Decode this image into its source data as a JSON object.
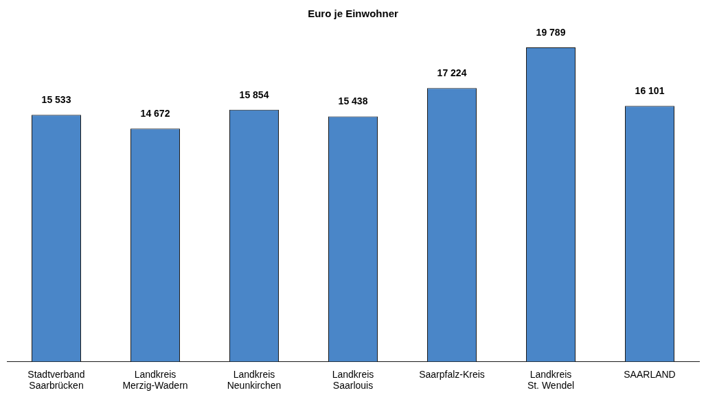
{
  "chart_data": {
    "type": "bar",
    "title": "Euro je Einwohner",
    "categories": [
      "Stadtverband\nSaarbrücken",
      "Landkreis\nMerzig-Wadern",
      "Landkreis\nNeunkirchen",
      "Landkreis\nSaarlouis",
      "Saarpfalz-Kreis",
      "Landkreis\nSt. Wendel",
      "SAARLAND"
    ],
    "values": [
      15533,
      14672,
      15854,
      15438,
      17224,
      19789,
      16101
    ],
    "value_labels": [
      "15 533",
      "14 672",
      "15 854",
      "15 438",
      "17 224",
      "19 789",
      "16 101"
    ],
    "color": "#4a86c8"
  }
}
